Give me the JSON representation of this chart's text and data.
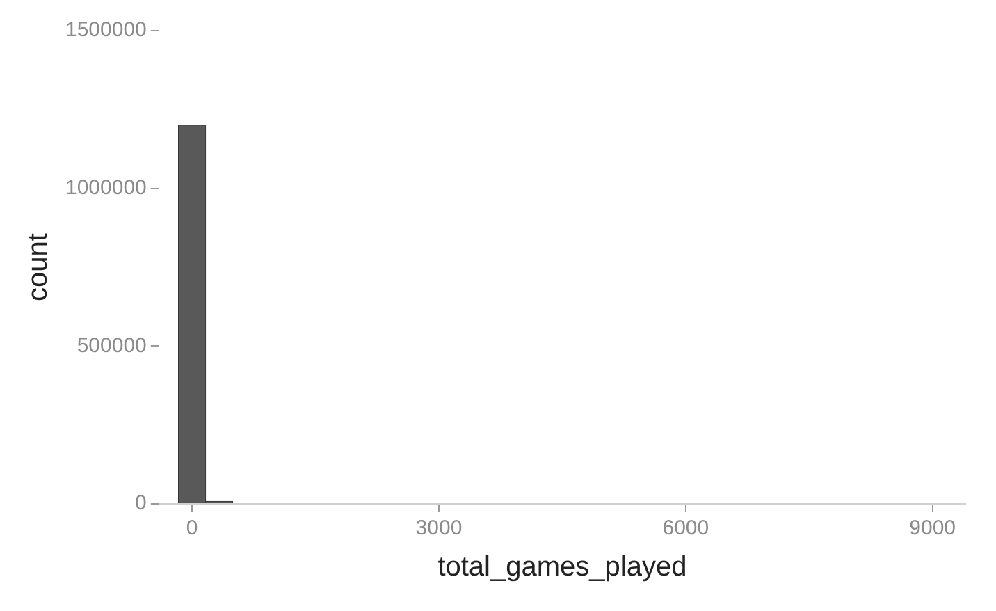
{
  "chart_data": {
    "type": "histogram",
    "xlabel": "total_games_played",
    "ylabel": "count",
    "bins": [
      -165,
      165,
      495
    ],
    "values": [
      1200000,
      8000
    ],
    "color": "#595959",
    "xlim": [
      -400,
      9400
    ],
    "xticks": [
      0,
      3000,
      6000,
      9000
    ],
    "ylim": [
      0,
      1500000
    ],
    "yticks": [
      0,
      500000,
      1000000,
      1500000
    ],
    "grid": false,
    "legend": false
  }
}
